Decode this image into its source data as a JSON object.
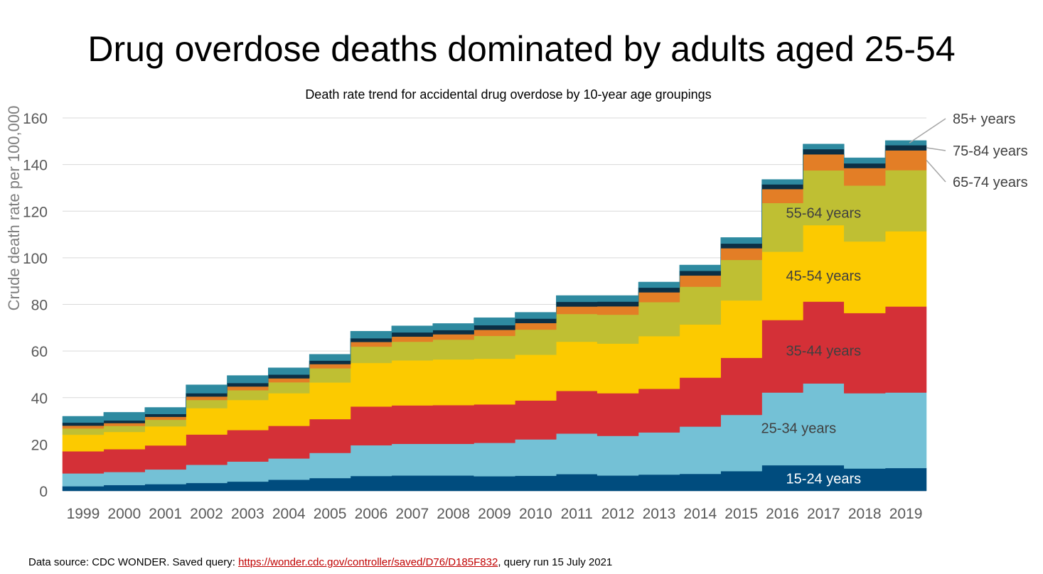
{
  "title": "Drug overdose deaths dominated by adults aged 25-54",
  "footer": {
    "prefix": "Data source: CDC WONDER. Saved query: ",
    "link_text": "https://wonder.cdc.gov/controller/saved/D76/D185F832",
    "suffix": ", query run 15 July 2021"
  },
  "chart_data": {
    "type": "area",
    "stacked": true,
    "step": true,
    "subtitle": "Death rate trend for accidental drug overdose by 10-year age groupings",
    "ylabel": "Crude death rate per 100,000",
    "xlabel": "",
    "ylim": [
      0,
      160
    ],
    "yticks": [
      0,
      20,
      40,
      60,
      80,
      100,
      120,
      140,
      160
    ],
    "grid": true,
    "categories": [
      "1999",
      "2000",
      "2001",
      "2002",
      "2003",
      "2004",
      "2005",
      "2006",
      "2007",
      "2008",
      "2009",
      "2010",
      "2011",
      "2012",
      "2013",
      "2014",
      "2015",
      "2016",
      "2017",
      "2018",
      "2019"
    ],
    "series": [
      {
        "name": "15-24 years",
        "color": "#004c7e",
        "values": [
          2.0,
          2.5,
          2.9,
          3.4,
          4.0,
          4.8,
          5.5,
          6.4,
          6.6,
          6.6,
          6.3,
          6.5,
          7.2,
          6.6,
          7.0,
          7.3,
          8.5,
          11.0,
          11.0,
          9.6,
          9.8
        ]
      },
      {
        "name": "25-34 years",
        "color": "#74c1d6",
        "values": [
          5.5,
          5.6,
          6.3,
          7.8,
          8.6,
          9.1,
          10.8,
          13.2,
          13.6,
          13.6,
          14.3,
          15.6,
          17.4,
          17.0,
          18.1,
          20.3,
          24.1,
          31.2,
          35.1,
          32.3,
          32.4
        ]
      },
      {
        "name": "35-44 years",
        "color": "#d43037",
        "values": [
          9.5,
          9.8,
          10.3,
          13.0,
          13.5,
          14.0,
          14.5,
          16.6,
          16.5,
          16.6,
          16.5,
          16.7,
          18.3,
          18.3,
          18.7,
          21.0,
          24.5,
          31.1,
          35.1,
          34.4,
          36.9
        ]
      },
      {
        "name": "45-54 years",
        "color": "#fcca00",
        "values": [
          7.1,
          7.4,
          8.2,
          11.3,
          12.9,
          14.0,
          15.7,
          18.7,
          19.3,
          19.6,
          19.6,
          19.6,
          21.1,
          21.3,
          22.6,
          22.8,
          24.6,
          29.3,
          32.8,
          30.7,
          32.3
        ]
      },
      {
        "name": "55-64 years",
        "color": "#bfbf33",
        "values": [
          2.7,
          2.6,
          2.8,
          3.5,
          4.2,
          4.7,
          6.1,
          7.0,
          8.0,
          8.5,
          9.8,
          10.8,
          11.9,
          12.4,
          14.6,
          16.2,
          17.4,
          20.9,
          23.5,
          24.0,
          26.2
        ]
      },
      {
        "name": "65-74 years",
        "color": "#e37e26",
        "values": [
          1.2,
          1.2,
          1.3,
          1.5,
          1.6,
          1.7,
          1.8,
          2.0,
          2.2,
          2.3,
          2.6,
          2.8,
          3.2,
          3.6,
          4.2,
          4.8,
          5.0,
          6.0,
          6.9,
          7.5,
          8.5
        ]
      },
      {
        "name": "75-84 years",
        "color": "#0b2f45",
        "values": [
          1.3,
          1.1,
          1.2,
          1.4,
          1.5,
          1.6,
          1.5,
          1.6,
          1.8,
          1.8,
          2.0,
          1.9,
          2.0,
          2.0,
          2.0,
          2.0,
          2.0,
          2.0,
          2.2,
          2.0,
          2.2
        ]
      },
      {
        "name": "85+ years",
        "color": "#2e8aa0",
        "values": [
          2.7,
          3.5,
          2.8,
          3.6,
          3.2,
          2.9,
          2.7,
          3.0,
          2.8,
          2.8,
          3.2,
          2.7,
          2.7,
          2.6,
          2.4,
          2.5,
          2.6,
          2.1,
          2.2,
          2.4,
          2.0
        ]
      }
    ],
    "inline_labels": [
      "15-24 years",
      "25-34 years",
      "35-44 years",
      "45-54 years",
      "55-64 years"
    ],
    "callout_labels": [
      "85+ years",
      "75-84 years",
      "65-74 years"
    ]
  }
}
